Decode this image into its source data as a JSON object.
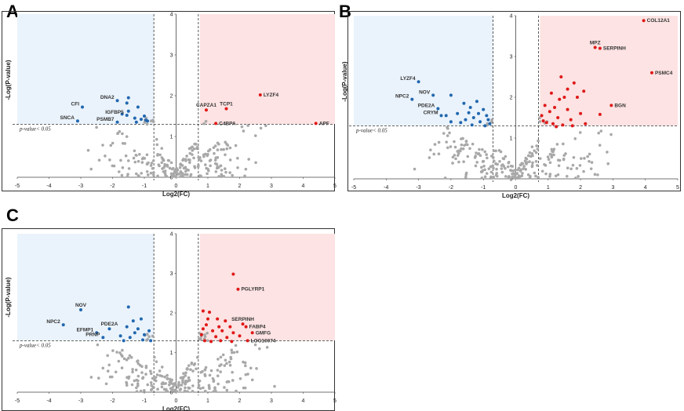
{
  "colors": {
    "down": "#2167b0",
    "up": "#e01818",
    "ns": "#a8a8a8",
    "down_bg": "#eaf3fb",
    "up_bg": "#fde3e3"
  },
  "chart_data": [
    {
      "panel": "A",
      "type": "scatter",
      "xlabel": "Log2(FC)",
      "ylabel": "-Log(P-value)",
      "threshold_label": "p-value< 0.05",
      "xlim": [
        -5,
        5
      ],
      "ylim": [
        0,
        4
      ],
      "xticks": [
        "-5",
        "-4",
        "-3",
        "-2",
        "-1",
        "0",
        "1",
        "2",
        "3",
        "4",
        "5"
      ],
      "yticks": [
        "0",
        "1",
        "2",
        "3",
        "4"
      ],
      "labels": [
        {
          "text": "DNA2",
          "x": -1.85,
          "y": 1.88,
          "dir": "left"
        },
        {
          "text": "CFI",
          "x": -2.95,
          "y": 1.72,
          "dir": "left"
        },
        {
          "text": "IGFBP5",
          "x": -1.55,
          "y": 1.52,
          "dir": "left"
        },
        {
          "text": "SNCA",
          "x": -3.1,
          "y": 1.38,
          "dir": "left"
        },
        {
          "text": "PSMB7",
          "x": -1.85,
          "y": 1.35,
          "dir": "left"
        },
        {
          "text": "LYZF4",
          "x": 2.65,
          "y": 2.02,
          "dir": "right"
        },
        {
          "text": "CAPZA1",
          "x": 0.95,
          "y": 1.65,
          "dir": "up"
        },
        {
          "text": "TCP1",
          "x": 1.58,
          "y": 1.68,
          "dir": "up"
        },
        {
          "text": "C4BPA",
          "x": 1.25,
          "y": 1.32,
          "dir": "right"
        },
        {
          "text": "APF",
          "x": 4.4,
          "y": 1.32,
          "dir": "right"
        }
      ],
      "points": {
        "down": [
          [
            -1.2,
            1.72
          ],
          [
            -1.5,
            1.62
          ],
          [
            -1.7,
            1.55
          ],
          [
            -1.0,
            1.5
          ],
          [
            -1.3,
            1.45
          ],
          [
            -1.1,
            1.42
          ],
          [
            -0.9,
            1.38
          ],
          [
            -1.25,
            1.35
          ],
          [
            -1.55,
            1.82
          ],
          [
            -1.5,
            1.95
          ],
          [
            -0.95,
            1.4
          ],
          [
            -1.85,
            1.88
          ],
          [
            -2.95,
            1.72
          ],
          [
            -1.55,
            1.52
          ],
          [
            -3.1,
            1.38
          ],
          [
            -1.85,
            1.35
          ]
        ],
        "up": [
          [
            0.95,
            1.65
          ],
          [
            1.58,
            1.68
          ],
          [
            1.25,
            1.32
          ],
          [
            2.65,
            2.02
          ],
          [
            4.4,
            1.32
          ]
        ]
      },
      "ns_seed": 11,
      "ns_count": 230
    },
    {
      "panel": "B",
      "type": "scatter",
      "xlabel": "Log2(FC)",
      "ylabel": "-Log(P-value)",
      "threshold_label": "p-value< 0.05",
      "xlim": [
        -5,
        5
      ],
      "ylim": [
        0,
        4
      ],
      "xticks": [
        "-5",
        "-4",
        "-3",
        "-2",
        "-1",
        "0",
        "1",
        "2",
        "3",
        "4",
        "5"
      ],
      "yticks": [
        "0",
        "1",
        "2",
        "3",
        "4"
      ],
      "labels": [
        {
          "text": "COL12A1",
          "x": 3.95,
          "y": 3.88,
          "dir": "right"
        },
        {
          "text": "MPZ",
          "x": 2.45,
          "y": 3.22,
          "dir": "up"
        },
        {
          "text": "SERPINH",
          "x": 2.6,
          "y": 3.2,
          "dir": "right"
        },
        {
          "text": "PSMC4",
          "x": 4.2,
          "y": 2.6,
          "dir": "right"
        },
        {
          "text": "BGN",
          "x": 2.95,
          "y": 1.8,
          "dir": "right"
        },
        {
          "text": "LYZF4",
          "x": -3.0,
          "y": 2.38,
          "dir": "left"
        },
        {
          "text": "NOV",
          "x": -2.55,
          "y": 2.05,
          "dir": "left"
        },
        {
          "text": "NPC2",
          "x": -3.2,
          "y": 1.95,
          "dir": "left"
        },
        {
          "text": "PDE2A",
          "x": -2.4,
          "y": 1.72,
          "dir": "left"
        },
        {
          "text": "CRYM",
          "x": -2.3,
          "y": 1.55,
          "dir": "left"
        }
      ],
      "points": {
        "up": [
          [
            3.95,
            3.88
          ],
          [
            2.45,
            3.22
          ],
          [
            2.6,
            3.2
          ],
          [
            4.2,
            2.6
          ],
          [
            2.95,
            1.8
          ],
          [
            1.4,
            2.5
          ],
          [
            1.8,
            2.35
          ],
          [
            2.1,
            2.15
          ],
          [
            1.1,
            2.1
          ],
          [
            1.5,
            2.0
          ],
          [
            1.9,
            2.0
          ],
          [
            0.9,
            1.8
          ],
          [
            1.2,
            1.75
          ],
          [
            1.6,
            1.7
          ],
          [
            2.0,
            1.6
          ],
          [
            0.8,
            1.55
          ],
          [
            1.3,
            1.5
          ],
          [
            1.7,
            1.45
          ],
          [
            2.6,
            1.58
          ],
          [
            0.95,
            1.38
          ],
          [
            1.15,
            1.35
          ],
          [
            1.45,
            1.32
          ],
          [
            1.75,
            1.3
          ],
          [
            2.15,
            1.35
          ],
          [
            1.05,
            1.65
          ],
          [
            1.35,
            1.95
          ],
          [
            1.6,
            2.2
          ],
          [
            0.85,
            1.42
          ],
          [
            1.25,
            1.28
          ]
        ],
        "down": [
          [
            -3.0,
            2.38
          ],
          [
            -2.55,
            2.05
          ],
          [
            -3.2,
            1.95
          ],
          [
            -2.4,
            1.72
          ],
          [
            -2.3,
            1.55
          ],
          [
            -2.0,
            2.05
          ],
          [
            -1.6,
            1.85
          ],
          [
            -1.2,
            1.9
          ],
          [
            -1.4,
            1.75
          ],
          [
            -1.0,
            1.7
          ],
          [
            -1.8,
            1.6
          ],
          [
            -0.9,
            1.55
          ],
          [
            -1.3,
            1.5
          ],
          [
            -1.55,
            1.45
          ],
          [
            -1.1,
            1.4
          ],
          [
            -0.8,
            1.35
          ],
          [
            -2.0,
            1.4
          ],
          [
            -1.7,
            1.38
          ],
          [
            -1.35,
            1.32
          ],
          [
            -0.95,
            1.3
          ],
          [
            -2.15,
            1.55
          ],
          [
            -1.15,
            1.6
          ],
          [
            -0.85,
            1.45
          ],
          [
            -1.45,
            1.62
          ]
        ]
      },
      "ns_seed": 23,
      "ns_count": 240
    },
    {
      "panel": "C",
      "type": "scatter",
      "xlabel": "Log2(FC)",
      "ylabel": "-Log(P-value)",
      "threshold_label": "p-value< 0.05",
      "xlim": [
        -5,
        5
      ],
      "ylim": [
        0,
        4
      ],
      "xticks": [
        "-5",
        "-4",
        "-3",
        "-2",
        "-1",
        "0",
        "1",
        "2",
        "3",
        "4",
        "5"
      ],
      "yticks": [
        "0",
        "1",
        "2",
        "3",
        "4"
      ],
      "labels": [
        {
          "text": "PGLYRP1",
          "x": 1.95,
          "y": 2.6,
          "dir": "right"
        },
        {
          "text": "SERPINH",
          "x": 2.1,
          "y": 1.72,
          "dir": "up"
        },
        {
          "text": "FABP4",
          "x": 2.2,
          "y": 1.65,
          "dir": "right"
        },
        {
          "text": "GMFG",
          "x": 2.4,
          "y": 1.5,
          "dir": "right"
        },
        {
          "text": "LOC10074",
          "x": 2.25,
          "y": 1.3,
          "dir": "right"
        },
        {
          "text": "NOV",
          "x": -3.0,
          "y": 2.08,
          "dir": "up"
        },
        {
          "text": "NPC2",
          "x": -3.55,
          "y": 1.7,
          "dir": "left"
        },
        {
          "text": "PDE2A",
          "x": -2.1,
          "y": 1.6,
          "dir": "up"
        },
        {
          "text": "EFMP1",
          "x": -2.5,
          "y": 1.5,
          "dir": "left"
        },
        {
          "text": "PRNP",
          "x": -2.3,
          "y": 1.38,
          "dir": "left"
        }
      ],
      "points": {
        "up": [
          [
            1.8,
            2.98
          ],
          [
            1.95,
            2.6
          ],
          [
            2.1,
            1.72
          ],
          [
            2.2,
            1.65
          ],
          [
            2.4,
            1.5
          ],
          [
            2.25,
            1.3
          ],
          [
            0.85,
            2.05
          ],
          [
            1.05,
            2.02
          ],
          [
            1.3,
            1.85
          ],
          [
            1.55,
            1.8
          ],
          [
            1.7,
            1.65
          ],
          [
            0.95,
            1.7
          ],
          [
            1.15,
            1.55
          ],
          [
            1.45,
            1.55
          ],
          [
            1.8,
            1.5
          ],
          [
            0.8,
            1.45
          ],
          [
            1.25,
            1.4
          ],
          [
            1.6,
            1.38
          ],
          [
            2.0,
            1.42
          ],
          [
            0.9,
            1.3
          ],
          [
            1.1,
            1.28
          ],
          [
            1.4,
            1.3
          ],
          [
            1.75,
            1.28
          ],
          [
            1.0,
            1.85
          ],
          [
            1.35,
            1.65
          ],
          [
            0.85,
            1.6
          ]
        ],
        "down": [
          [
            -3.0,
            2.08
          ],
          [
            -3.55,
            1.7
          ],
          [
            -2.1,
            1.6
          ],
          [
            -2.5,
            1.5
          ],
          [
            -2.3,
            1.38
          ],
          [
            -1.5,
            2.15
          ],
          [
            -1.35,
            1.8
          ],
          [
            -1.1,
            1.85
          ],
          [
            -1.55,
            1.65
          ],
          [
            -1.2,
            1.6
          ],
          [
            -0.85,
            1.55
          ],
          [
            -1.3,
            1.5
          ],
          [
            -1.0,
            1.45
          ],
          [
            -1.75,
            1.42
          ],
          [
            -1.45,
            1.38
          ],
          [
            -1.05,
            1.32
          ],
          [
            -0.8,
            1.3
          ],
          [
            -1.65,
            1.3
          ]
        ]
      },
      "ns_seed": 37,
      "ns_count": 240
    }
  ]
}
